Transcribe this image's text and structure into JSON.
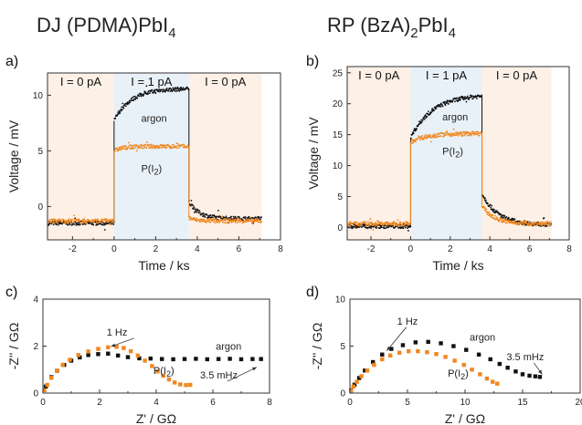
{
  "titles": {
    "left": {
      "base": "DJ (PDMA)PbI",
      "sub": "4"
    },
    "right": {
      "base": "RP (BzA)",
      "sub1": "2",
      "mid": "PbI",
      "sub2": "4"
    }
  },
  "colors": {
    "argon": "#111111",
    "iodine": "#f0871e",
    "pink_region": "#fdf0e6",
    "blue_region": "#e8f1f8"
  },
  "chart_data": [
    {
      "panel": "a)",
      "type": "scatter",
      "xlabel": "Time / ks",
      "ylabel": "Voltage / mV",
      "xlim": [
        -3.2,
        8
      ],
      "ylim": [
        -3,
        12
      ],
      "xticks": [
        -2,
        0,
        2,
        4,
        6,
        8
      ],
      "yticks": [
        0,
        5,
        10
      ],
      "regions": [
        {
          "label": "I = 0 pA",
          "x0": -3.2,
          "x1": 0,
          "color": "pink"
        },
        {
          "label": "I = 1 pA",
          "x0": 0,
          "x1": 3.6,
          "color": "blue"
        },
        {
          "label": "I = 0 pA",
          "x0": 3.6,
          "x1": 7.1,
          "color": "pink"
        }
      ],
      "series": [
        {
          "name": "argon",
          "color": "#111111",
          "base_before": -1.5,
          "jump": 7.7,
          "rise_to": 10.6,
          "tau_rise": 0.8,
          "drop_to": 0.4,
          "decay_to": -1.1,
          "tau_decay": 0.5
        },
        {
          "name": "P(I2)",
          "color": "#f0871e",
          "base_before": -1.3,
          "jump": 5.0,
          "rise_to": 5.4,
          "tau_rise": 0.4,
          "drop_to": -1.0,
          "decay_to": -1.3,
          "tau_decay": 0.3
        }
      ],
      "labels": [
        {
          "text": "argon",
          "x": 1.3,
          "y": 7.6,
          "color": "#111111"
        },
        {
          "text": "P(I",
          "sub": "2",
          "tail": ")",
          "x": 1.3,
          "y": 3.1,
          "color": "#f0871e"
        }
      ]
    },
    {
      "panel": "b)",
      "type": "scatter",
      "xlabel": "Time / ks",
      "ylabel": "Voltage / mV",
      "xlim": [
        -3.2,
        8
      ],
      "ylim": [
        -2,
        26
      ],
      "xticks": [
        -2,
        0,
        2,
        4,
        6,
        8
      ],
      "yticks": [
        0,
        5,
        10,
        15,
        20,
        25
      ],
      "regions": [
        {
          "label": "I = 0 pA",
          "x0": -3.2,
          "x1": 0,
          "color": "pink"
        },
        {
          "label": "I = 1 pA",
          "x0": 0,
          "x1": 3.6,
          "color": "blue"
        },
        {
          "label": "I = 0 pA",
          "x0": 3.6,
          "x1": 7.1,
          "color": "pink"
        }
      ],
      "series": [
        {
          "name": "argon",
          "color": "#111111",
          "base_before": 0.2,
          "jump": 14.5,
          "rise_to": 21.5,
          "tau_rise": 1.1,
          "drop_to": 5.5,
          "decay_to": 0.4,
          "tau_decay": 0.8
        },
        {
          "name": "P(I2)",
          "color": "#f0871e",
          "base_before": 0.6,
          "jump": 13.8,
          "rise_to": 15.2,
          "tau_rise": 0.8,
          "drop_to": 3.5,
          "decay_to": 0.6,
          "tau_decay": 0.6
        }
      ],
      "labels": [
        {
          "text": "argon",
          "x": 1.6,
          "y": 17.3,
          "color": "#111111"
        },
        {
          "text": "P(I",
          "sub": "2",
          "tail": ")",
          "x": 1.6,
          "y": 11.8,
          "color": "#f0871e"
        }
      ]
    },
    {
      "panel": "c)",
      "type": "scatter",
      "xlabel": "Z' / GΩ",
      "ylabel": "-Z'' / GΩ",
      "xlim": [
        0,
        8
      ],
      "ylim": [
        0,
        4
      ],
      "xticks": [
        0,
        2,
        4,
        6,
        8
      ],
      "yticks": [
        0,
        2,
        4
      ],
      "series": [
        {
          "name": "argon",
          "color": "#111111",
          "points": [
            [
              0.1,
              0.28
            ],
            [
              0.3,
              0.68
            ],
            [
              0.5,
              0.95
            ],
            [
              0.75,
              1.2
            ],
            [
              1.0,
              1.38
            ],
            [
              1.3,
              1.52
            ],
            [
              1.6,
              1.62
            ],
            [
              1.95,
              1.66
            ],
            [
              2.3,
              1.68
            ],
            [
              2.65,
              1.6
            ],
            [
              3.0,
              1.53
            ],
            [
              3.4,
              1.48
            ],
            [
              3.8,
              1.47
            ],
            [
              4.2,
              1.45
            ],
            [
              4.6,
              1.44
            ],
            [
              5.0,
              1.45
            ],
            [
              5.4,
              1.46
            ],
            [
              5.8,
              1.44
            ],
            [
              6.2,
              1.45
            ],
            [
              6.6,
              1.46
            ],
            [
              7.0,
              1.44
            ],
            [
              7.4,
              1.45
            ],
            [
              7.7,
              1.45
            ]
          ]
        },
        {
          "name": "P(I2)",
          "color": "#f0871e",
          "points": [
            [
              0.05,
              0.12
            ],
            [
              0.15,
              0.35
            ],
            [
              0.3,
              0.65
            ],
            [
              0.5,
              0.95
            ],
            [
              0.7,
              1.2
            ],
            [
              0.95,
              1.42
            ],
            [
              1.25,
              1.62
            ],
            [
              1.6,
              1.77
            ],
            [
              1.95,
              1.88
            ],
            [
              2.3,
              1.95
            ],
            [
              2.6,
              1.97
            ],
            [
              2.85,
              1.92
            ],
            [
              3.1,
              1.78
            ],
            [
              3.35,
              1.6
            ],
            [
              3.6,
              1.38
            ],
            [
              3.85,
              1.15
            ],
            [
              4.05,
              0.92
            ],
            [
              4.25,
              0.74
            ],
            [
              4.45,
              0.58
            ],
            [
              4.65,
              0.45
            ],
            [
              4.85,
              0.37
            ],
            [
              5.05,
              0.34
            ],
            [
              5.2,
              0.35
            ]
          ]
        }
      ],
      "labels": [
        {
          "text": "argon",
          "x": 6.1,
          "y": 1.85,
          "color": "#111111"
        },
        {
          "text": "P(I",
          "sub": "2",
          "tail": ")",
          "x": 3.9,
          "y": 0.82,
          "color": "#f0871e"
        }
      ],
      "annotations": [
        {
          "text": "1 Hz",
          "tx": 2.25,
          "ty": 2.45,
          "ax": 2.4,
          "ay": 1.98
        },
        {
          "text": "3.5 mHz",
          "tx": 5.55,
          "ty": 0.62,
          "ax": 7.55,
          "ay": 1.1
        }
      ]
    },
    {
      "panel": "d)",
      "type": "scatter",
      "xlabel": "Z' / GΩ",
      "ylabel": "-Z'' / GΩ",
      "xlim": [
        0,
        20
      ],
      "ylim": [
        0,
        10
      ],
      "xticks": [
        0,
        5,
        10,
        15,
        20
      ],
      "yticks": [
        0,
        5,
        10
      ],
      "series": [
        {
          "name": "argon",
          "color": "#111111",
          "points": [
            [
              0.1,
              0.3
            ],
            [
              0.4,
              0.9
            ],
            [
              0.8,
              1.6
            ],
            [
              1.3,
              2.4
            ],
            [
              2.0,
              3.3
            ],
            [
              2.8,
              4.1
            ],
            [
              3.6,
              4.7
            ],
            [
              4.6,
              5.1
            ],
            [
              5.7,
              5.4
            ],
            [
              6.8,
              5.45
            ],
            [
              7.9,
              5.3
            ],
            [
              9.0,
              5.0
            ],
            [
              10.1,
              4.6
            ],
            [
              11.2,
              4.1
            ],
            [
              12.2,
              3.6
            ],
            [
              13.0,
              3.1
            ],
            [
              13.7,
              2.7
            ],
            [
              14.4,
              2.3
            ],
            [
              15.0,
              2.0
            ],
            [
              15.6,
              1.85
            ],
            [
              16.1,
              1.78
            ],
            [
              16.5,
              1.72
            ]
          ]
        },
        {
          "name": "P(I2)",
          "color": "#f0871e",
          "points": [
            [
              0.1,
              0.25
            ],
            [
              0.3,
              0.7
            ],
            [
              0.6,
              1.2
            ],
            [
              1.0,
              1.8
            ],
            [
              1.5,
              2.4
            ],
            [
              2.1,
              3.0
            ],
            [
              2.8,
              3.6
            ],
            [
              3.5,
              4.0
            ],
            [
              4.3,
              4.3
            ],
            [
              5.1,
              4.45
            ],
            [
              5.9,
              4.45
            ],
            [
              6.7,
              4.35
            ],
            [
              7.5,
              4.15
            ],
            [
              8.3,
              3.85
            ],
            [
              9.1,
              3.45
            ],
            [
              9.9,
              3.0
            ],
            [
              10.6,
              2.5
            ],
            [
              11.3,
              2.0
            ],
            [
              11.9,
              1.55
            ],
            [
              12.4,
              1.2
            ],
            [
              12.8,
              1.0
            ]
          ]
        }
      ],
      "labels": [
        {
          "text": "argon",
          "x": 10.4,
          "y": 5.6,
          "color": "#111111"
        },
        {
          "text": "P(I",
          "sub": "2",
          "tail": ")",
          "x": 8.5,
          "y": 1.75,
          "color": "#f0871e"
        }
      ],
      "annotations": [
        {
          "text": "1 Hz",
          "tx": 4.1,
          "ty": 7.3,
          "ax": 3.2,
          "ay": 4.5
        },
        {
          "text": "3.5 mHz",
          "tx": 13.6,
          "ty": 3.5,
          "ax": 16.7,
          "ay": 2.0
        }
      ]
    }
  ]
}
